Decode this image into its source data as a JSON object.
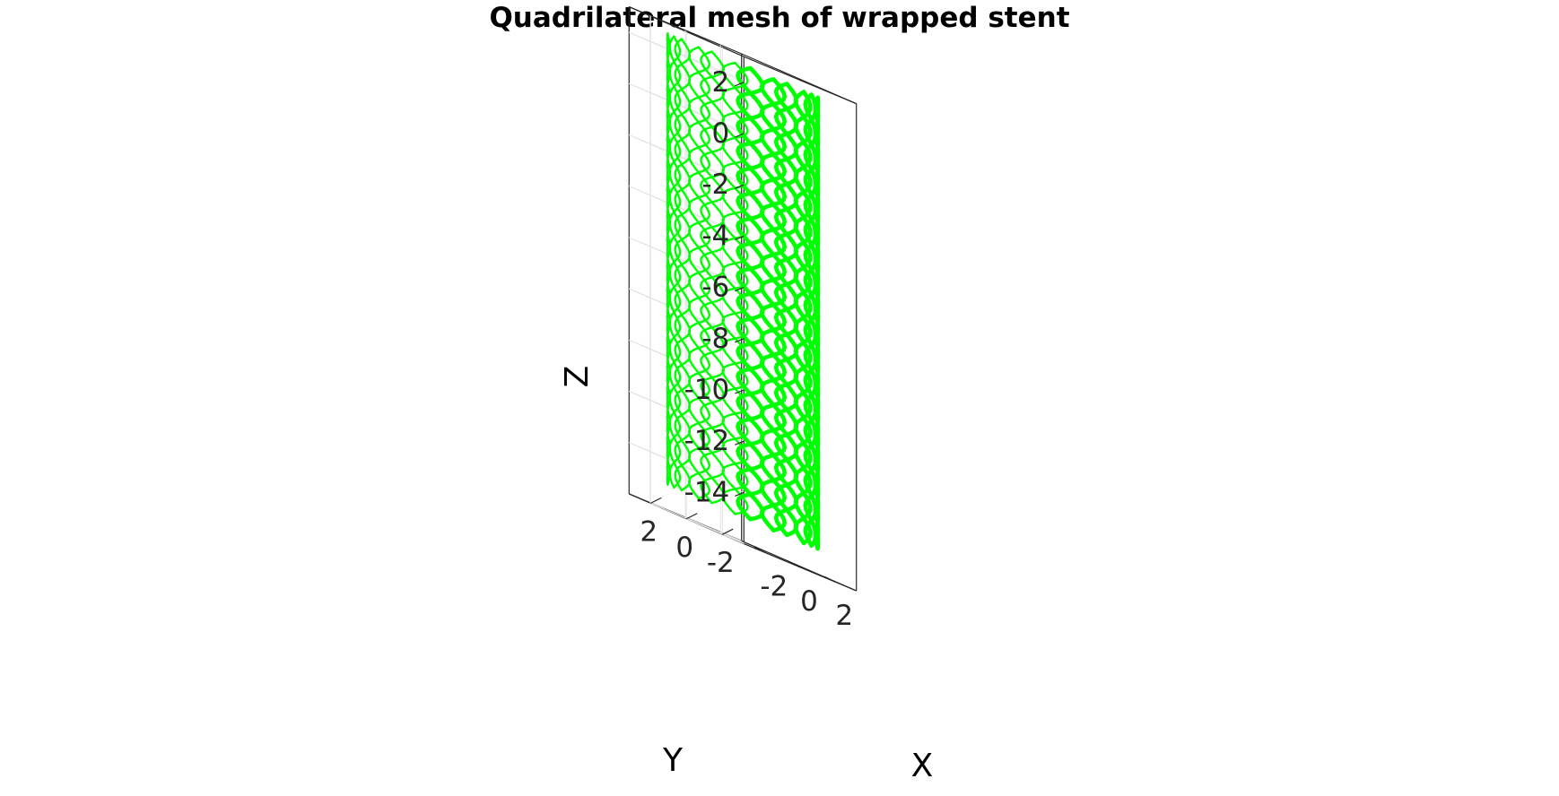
{
  "figure": {
    "title": "Quadrilateral mesh of wrapped stent",
    "mesh_color": "#00ff00",
    "axis_color": "#262626",
    "grid": true,
    "view": "3d-isometric"
  },
  "axes": {
    "x": {
      "label": "X",
      "ticks": [
        "-2",
        "0",
        "2"
      ],
      "range": [
        -3.2,
        3.2
      ]
    },
    "y": {
      "label": "Y",
      "ticks": [
        "2",
        "0",
        "-2"
      ],
      "range": [
        -3.2,
        3.2
      ]
    },
    "z": {
      "label": "Z",
      "ticks": [
        "2",
        "0",
        "-2",
        "-4",
        "-6",
        "-8",
        "-10",
        "-12",
        "-14"
      ],
      "range": [
        -16,
        3
      ]
    }
  },
  "chart_data": {
    "type": "mesh3d",
    "title": "Quadrilateral mesh of wrapped stent",
    "xlabel": "X",
    "ylabel": "Y",
    "zlabel": "Z",
    "xlim": [
      -3.2,
      3.2
    ],
    "ylim": [
      -3.2,
      3.2
    ],
    "zlim": [
      -16,
      3
    ],
    "series": [
      {
        "shape": "cylinder",
        "radius": 3,
        "z_range": [
          -16,
          3
        ],
        "struts_around": 12,
        "diamond_rows": 18
      }
    ]
  }
}
